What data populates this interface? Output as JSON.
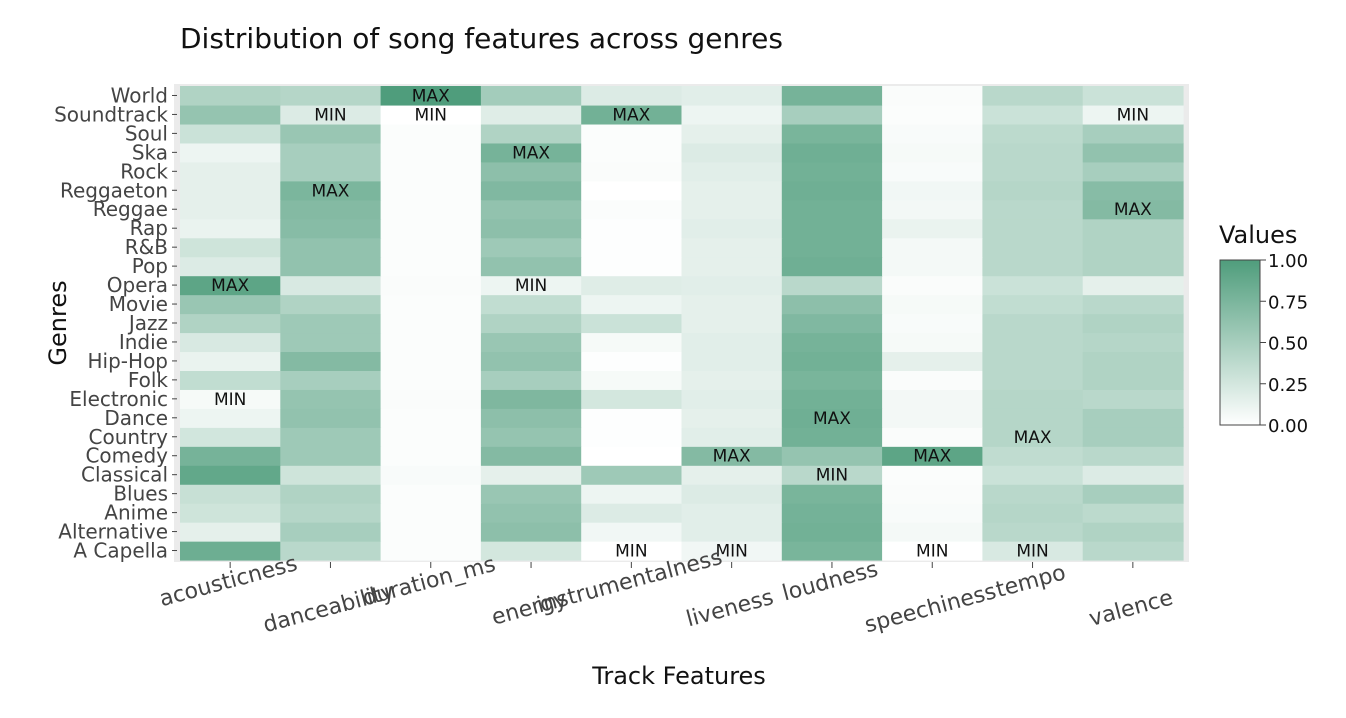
{
  "chart_data": {
    "type": "heatmap",
    "title": "Distribution of song features across genres",
    "xlabel": "Track Features",
    "ylabel": "Genres",
    "x": [
      "acousticness",
      "danceability",
      "duration_ms",
      "energy",
      "instrumentalness",
      "liveness",
      "loudness",
      "speechiness",
      "tempo",
      "valence"
    ],
    "y": [
      "A Capella",
      "Alternative",
      "Anime",
      "Blues",
      "Classical",
      "Comedy",
      "Country",
      "Dance",
      "Electronic",
      "Folk",
      "Hip-Hop",
      "Indie",
      "Jazz",
      "Movie",
      "Opera",
      "Pop",
      "R&B",
      "Rap",
      "Reggae",
      "Reggaeton",
      "Rock",
      "Ska",
      "Soul",
      "Soundtrack",
      "World"
    ],
    "z": [
      [
        0.83,
        0.4,
        0.02,
        0.25,
        0.0,
        0.08,
        0.76,
        0.0,
        0.22,
        0.4
      ],
      [
        0.15,
        0.5,
        0.02,
        0.65,
        0.08,
        0.17,
        0.8,
        0.06,
        0.4,
        0.45
      ],
      [
        0.28,
        0.42,
        0.02,
        0.62,
        0.2,
        0.17,
        0.79,
        0.04,
        0.42,
        0.38
      ],
      [
        0.32,
        0.45,
        0.02,
        0.58,
        0.1,
        0.2,
        0.76,
        0.03,
        0.4,
        0.5
      ],
      [
        0.89,
        0.28,
        0.04,
        0.15,
        0.55,
        0.15,
        0.4,
        0.02,
        0.3,
        0.2
      ],
      [
        0.78,
        0.55,
        0.02,
        0.7,
        0.0,
        0.7,
        0.6,
        0.92,
        0.36,
        0.4
      ],
      [
        0.26,
        0.55,
        0.02,
        0.6,
        0.01,
        0.17,
        0.8,
        0.03,
        0.42,
        0.5
      ],
      [
        0.1,
        0.62,
        0.02,
        0.65,
        0.01,
        0.15,
        0.82,
        0.07,
        0.42,
        0.5
      ],
      [
        0.05,
        0.6,
        0.03,
        0.73,
        0.25,
        0.17,
        0.8,
        0.07,
        0.42,
        0.4
      ],
      [
        0.35,
        0.5,
        0.02,
        0.5,
        0.05,
        0.15,
        0.76,
        0.03,
        0.4,
        0.45
      ],
      [
        0.12,
        0.7,
        0.02,
        0.62,
        0.01,
        0.17,
        0.8,
        0.15,
        0.4,
        0.45
      ],
      [
        0.22,
        0.55,
        0.02,
        0.58,
        0.05,
        0.17,
        0.78,
        0.05,
        0.4,
        0.42
      ],
      [
        0.45,
        0.55,
        0.02,
        0.45,
        0.3,
        0.15,
        0.72,
        0.04,
        0.4,
        0.45
      ],
      [
        0.58,
        0.45,
        0.02,
        0.35,
        0.1,
        0.15,
        0.65,
        0.05,
        0.35,
        0.4
      ],
      [
        0.92,
        0.22,
        0.03,
        0.1,
        0.18,
        0.17,
        0.4,
        0.03,
        0.3,
        0.15
      ],
      [
        0.2,
        0.62,
        0.02,
        0.62,
        0.01,
        0.15,
        0.82,
        0.06,
        0.4,
        0.45
      ],
      [
        0.28,
        0.62,
        0.02,
        0.55,
        0.01,
        0.15,
        0.8,
        0.06,
        0.4,
        0.45
      ],
      [
        0.12,
        0.68,
        0.02,
        0.65,
        0.01,
        0.17,
        0.8,
        0.12,
        0.4,
        0.45
      ],
      [
        0.15,
        0.7,
        0.02,
        0.62,
        0.02,
        0.15,
        0.8,
        0.07,
        0.4,
        0.7
      ],
      [
        0.15,
        0.75,
        0.02,
        0.72,
        0.0,
        0.15,
        0.82,
        0.08,
        0.42,
        0.68
      ],
      [
        0.15,
        0.5,
        0.02,
        0.65,
        0.03,
        0.17,
        0.8,
        0.04,
        0.4,
        0.5
      ],
      [
        0.1,
        0.5,
        0.02,
        0.78,
        0.02,
        0.2,
        0.82,
        0.05,
        0.4,
        0.62
      ],
      [
        0.3,
        0.58,
        0.02,
        0.45,
        0.02,
        0.15,
        0.76,
        0.04,
        0.38,
        0.5
      ],
      [
        0.6,
        0.2,
        0.0,
        0.18,
        0.8,
        0.1,
        0.5,
        0.02,
        0.3,
        0.1
      ],
      [
        0.45,
        0.42,
        1.0,
        0.52,
        0.2,
        0.17,
        0.78,
        0.03,
        0.4,
        0.3
      ]
    ],
    "annotations": [
      {
        "x": "duration_ms",
        "y": "World",
        "text": "MAX"
      },
      {
        "x": "danceability",
        "y": "Soundtrack",
        "text": "MIN"
      },
      {
        "x": "duration_ms",
        "y": "Soundtrack",
        "text": "MIN"
      },
      {
        "x": "instrumentalness",
        "y": "Soundtrack",
        "text": "MAX"
      },
      {
        "x": "valence",
        "y": "Soundtrack",
        "text": "MIN"
      },
      {
        "x": "energy",
        "y": "Ska",
        "text": "MAX"
      },
      {
        "x": "danceability",
        "y": "Reggaeton",
        "text": "MAX"
      },
      {
        "x": "valence",
        "y": "Reggae",
        "text": "MAX"
      },
      {
        "x": "acousticness",
        "y": "Opera",
        "text": "MAX"
      },
      {
        "x": "energy",
        "y": "Opera",
        "text": "MIN"
      },
      {
        "x": "acousticness",
        "y": "Electronic",
        "text": "MIN"
      },
      {
        "x": "loudness",
        "y": "Dance",
        "text": "MAX"
      },
      {
        "x": "tempo",
        "y": "Country",
        "text": "MAX"
      },
      {
        "x": "liveness",
        "y": "Comedy",
        "text": "MAX"
      },
      {
        "x": "speechiness",
        "y": "Comedy",
        "text": "MAX"
      },
      {
        "x": "loudness",
        "y": "Classical",
        "text": "MIN"
      },
      {
        "x": "instrumentalness",
        "y": "A Capella",
        "text": "MIN"
      },
      {
        "x": "liveness",
        "y": "A Capella",
        "text": "MIN"
      },
      {
        "x": "speechiness",
        "y": "A Capella",
        "text": "MIN"
      },
      {
        "x": "tempo",
        "y": "A Capella",
        "text": "MIN"
      }
    ],
    "colorscale": [
      "#ffffff",
      "#4f9d7c"
    ],
    "zlim": [
      0,
      1
    ],
    "legend": {
      "title": "Values",
      "ticks": [
        "1.00",
        "0.75",
        "0.50",
        "0.25",
        "0.00"
      ],
      "placement": "right"
    },
    "grid": true,
    "plot_background": "#ebebeb"
  }
}
